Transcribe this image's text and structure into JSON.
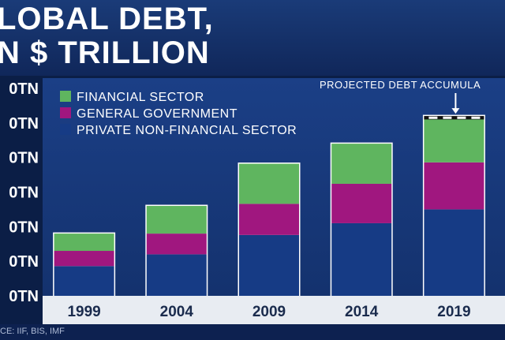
{
  "title": {
    "line1": "LOBAL DEBT,",
    "line2": "N $ TRILLION"
  },
  "source": "CE: IIF, BIS, IMF",
  "colors": {
    "financial": "#5fb55f",
    "government": "#a0177f",
    "private": "#163b85",
    "bar_outline": "#ffffff"
  },
  "chart_data": {
    "type": "bar",
    "stacked": true,
    "categories": [
      "1999",
      "2004",
      "2009",
      "2014",
      "2019"
    ],
    "y_tick_labels": [
      "0TN",
      "0TN",
      "0TN",
      "0TN",
      "0TN",
      "0TN",
      "0TN"
    ],
    "ylim": [
      0,
      300
    ],
    "grid": false,
    "legend_position": "top-left",
    "series": [
      {
        "key": "private",
        "name": "PRIVATE NON-FINANCIAL SECTOR",
        "values": [
          43,
          60,
          88,
          105,
          125
        ]
      },
      {
        "key": "government",
        "name": "GENERAL GOVERNMENT",
        "values": [
          22,
          30,
          45,
          57,
          68
        ]
      },
      {
        "key": "financial",
        "name": "FINANCIAL SECTOR",
        "values": [
          25,
          40,
          58,
          58,
          62
        ]
      }
    ],
    "legend_order": [
      "financial",
      "government",
      "private"
    ],
    "projected_label": "PROJECTED DEBT ACCUMULA",
    "projected_category": "2019",
    "projected_extra": 5
  }
}
